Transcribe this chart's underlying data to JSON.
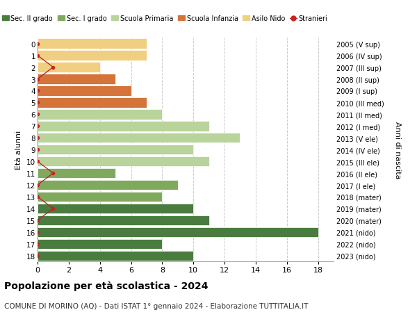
{
  "ages": [
    18,
    17,
    16,
    15,
    14,
    13,
    12,
    11,
    10,
    9,
    8,
    7,
    6,
    5,
    4,
    3,
    2,
    1,
    0
  ],
  "years_labels": [
    "2005 (V sup)",
    "2006 (IV sup)",
    "2007 (III sup)",
    "2008 (II sup)",
    "2009 (I sup)",
    "2010 (III med)",
    "2011 (II med)",
    "2012 (I med)",
    "2013 (V ele)",
    "2014 (IV ele)",
    "2015 (III ele)",
    "2016 (II ele)",
    "2017 (I ele)",
    "2018 (mater)",
    "2019 (mater)",
    "2020 (mater)",
    "2021 (nido)",
    "2022 (nido)",
    "2023 (nido)"
  ],
  "values": [
    10,
    8,
    18,
    11,
    10,
    8,
    9,
    5,
    11,
    10,
    13,
    11,
    8,
    7,
    6,
    5,
    4,
    7,
    7
  ],
  "bar_colors": [
    "#4a7c3f",
    "#4a7c3f",
    "#4a7c3f",
    "#4a7c3f",
    "#4a7c3f",
    "#7faa5e",
    "#7faa5e",
    "#7faa5e",
    "#b8d49a",
    "#b8d49a",
    "#b8d49a",
    "#b8d49a",
    "#b8d49a",
    "#d4733a",
    "#d4733a",
    "#d4733a",
    "#f0d080",
    "#f0d080",
    "#f0d080"
  ],
  "stranieri_values": [
    0,
    0,
    0,
    0,
    1,
    0,
    0,
    1,
    0,
    0,
    0,
    0,
    0,
    0,
    0,
    0,
    1,
    0,
    0
  ],
  "legend_labels": [
    "Sec. II grado",
    "Sec. I grado",
    "Scuola Primaria",
    "Scuola Infanzia",
    "Asilo Nido",
    "Stranieri"
  ],
  "legend_colors": [
    "#4a7c3f",
    "#7faa5e",
    "#b8d49a",
    "#d4733a",
    "#f0d080",
    "#cc2222"
  ],
  "ylabel": "Età alunni",
  "right_label": "Anni di nascita",
  "title": "Popolazione per età scolastica - 2024",
  "subtitle": "COMUNE DI MORINO (AQ) - Dati ISTAT 1° gennaio 2024 - Elaborazione TUTTITALIA.IT",
  "xlim": [
    0,
    19
  ],
  "background_color": "#ffffff",
  "grid_color": "#cccccc"
}
